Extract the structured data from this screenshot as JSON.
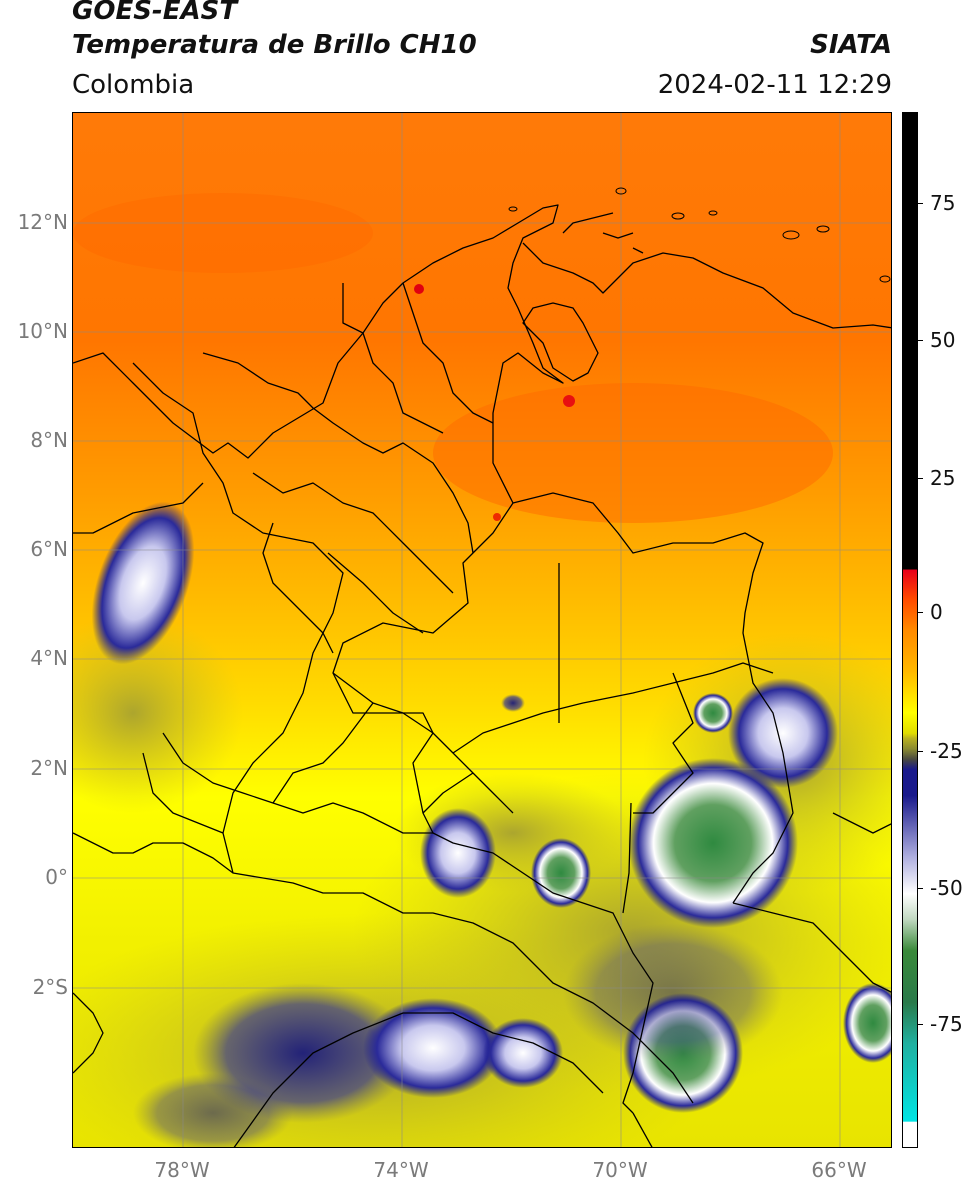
{
  "header": {
    "satellite": "GOES-EAST",
    "product": "Temperatura de Brillo CH10",
    "region": "Colombia",
    "agency": "SIATA",
    "timestamp": "2024-02-11 12:29"
  },
  "map": {
    "lat_labels": [
      "12°N",
      "10°N",
      "8°N",
      "6°N",
      "4°N",
      "2°N",
      "0°",
      "2°S"
    ],
    "lon_labels": [
      "78°W",
      "74°W",
      "70°W",
      "66°W"
    ],
    "lat_range": [
      -5,
      14
    ],
    "lon_range": [
      -80,
      -65
    ]
  },
  "colorbar": {
    "labels": [
      "75",
      "50",
      "25",
      "0",
      "-25",
      "-50",
      "-75"
    ],
    "range": [
      -90,
      90
    ],
    "colors": {
      "warm_black": "#000000",
      "red": "#e8001a",
      "orange": "#ff8a00",
      "yellow": "#ffff00",
      "olive": "#b8b020",
      "navy": "#1a1a8c",
      "white": "#ffffff",
      "green": "#3a8a3a",
      "cyan": "#00dcdc"
    }
  }
}
